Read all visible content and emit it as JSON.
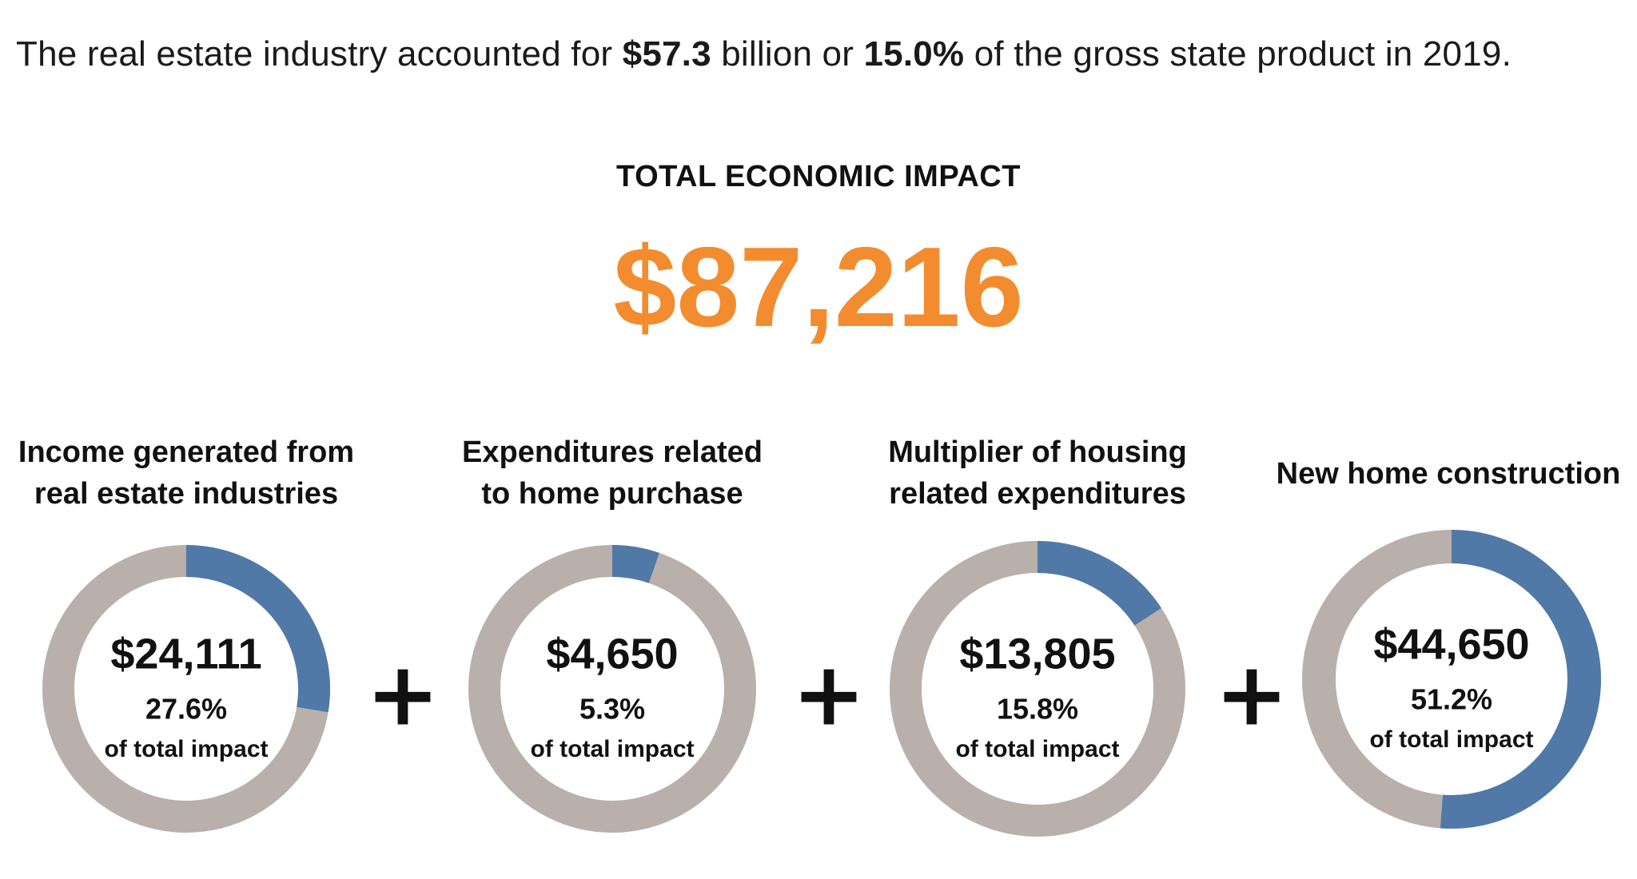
{
  "intro": {
    "part1": "The real estate industry accounted for ",
    "amount": "$57.3",
    "part2": " billion or ",
    "percent": "15.0%",
    "part3": " of the gross state product in 2019."
  },
  "total": {
    "label": "TOTAL ECONOMIC IMPACT",
    "value": "$87,216"
  },
  "colors": {
    "accent_orange": "#f28c2e",
    "segment_blue": "#5079a8",
    "track_gray": "#b9b0ab"
  },
  "operator": "+",
  "chart_data": {
    "type": "pie",
    "style": "donut",
    "panels": [
      {
        "title_lines": [
          "Income generated from",
          "real estate industries"
        ],
        "value_label": "$24,111",
        "value": 24111,
        "percent_label": "27.6%",
        "share": 0.276,
        "caption": "of total impact"
      },
      {
        "title_lines": [
          "Expenditures related",
          "to home purchase"
        ],
        "value_label": "$4,650",
        "value": 4650,
        "percent_label": "5.3%",
        "share": 0.053,
        "caption": "of total impact"
      },
      {
        "title_lines": [
          "Multiplier of housing",
          "related expenditures"
        ],
        "value_label": "$13,805",
        "value": 13805,
        "percent_label": "15.8%",
        "share": 0.158,
        "caption": "of total impact"
      },
      {
        "title_lines": [
          "New home construction"
        ],
        "value_label": "$44,650",
        "value": 44650,
        "percent_label": "51.2%",
        "share": 0.512,
        "caption": "of total impact"
      }
    ]
  }
}
